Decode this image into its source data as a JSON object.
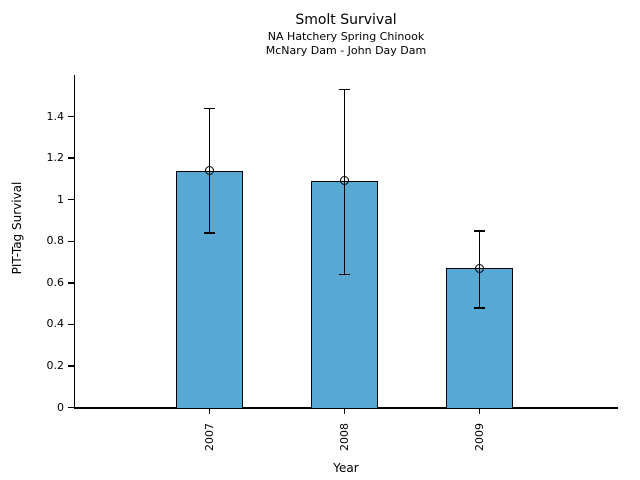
{
  "chart_data": {
    "type": "bar",
    "title": "Smolt Survival",
    "subtitle1": "NA Hatchery Spring Chinook",
    "subtitle2": "McNary Dam - John Day Dam",
    "xlabel": "Year",
    "ylabel": "PIT-Tag Survival",
    "categories": [
      "2007",
      "2008",
      "2009"
    ],
    "values": [
      1.14,
      1.09,
      0.67
    ],
    "error_low": [
      0.84,
      0.64,
      0.48
    ],
    "error_high": [
      1.44,
      1.53,
      0.85
    ],
    "y_ticks": [
      0,
      0.2,
      0.4,
      0.6,
      0.8,
      1,
      1.2,
      1.4
    ],
    "y_tick_labels": [
      "0",
      "0.2",
      "0.4",
      "0.6",
      "0.8",
      "1",
      "1.2",
      "1.4"
    ],
    "ylim": [
      0,
      1.6
    ],
    "grid": false,
    "legend": "none",
    "marker": "open-circle",
    "colors": {
      "bar_fill": "#58A8D4",
      "bar_edge": "#000000",
      "axis": "#000000",
      "text": "#000000",
      "background": "#ffffff"
    }
  }
}
